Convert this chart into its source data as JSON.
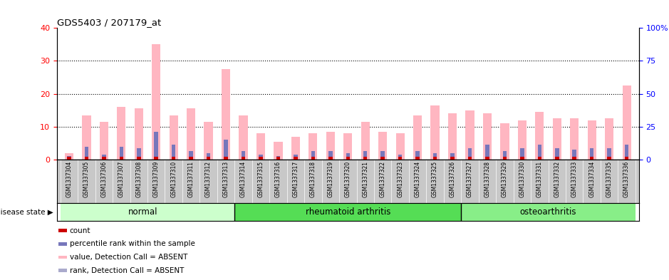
{
  "title": "GDS5403 / 207179_at",
  "samples": [
    "GSM1337304",
    "GSM1337305",
    "GSM1337306",
    "GSM1337307",
    "GSM1337308",
    "GSM1337309",
    "GSM1337310",
    "GSM1337311",
    "GSM1337312",
    "GSM1337313",
    "GSM1337314",
    "GSM1337315",
    "GSM1337316",
    "GSM1337317",
    "GSM1337318",
    "GSM1337319",
    "GSM1337320",
    "GSM1337321",
    "GSM1337322",
    "GSM1337323",
    "GSM1337324",
    "GSM1337325",
    "GSM1337326",
    "GSM1337327",
    "GSM1337328",
    "GSM1337329",
    "GSM1337330",
    "GSM1337331",
    "GSM1337332",
    "GSM1337333",
    "GSM1337334",
    "GSM1337335",
    "GSM1337336"
  ],
  "pink_values": [
    2.0,
    13.5,
    11.5,
    16.0,
    15.5,
    35.0,
    13.5,
    15.5,
    11.5,
    27.5,
    13.5,
    8.0,
    5.5,
    7.0,
    8.0,
    8.5,
    8.0,
    11.5,
    8.5,
    8.0,
    13.5,
    16.5,
    14.0,
    15.0,
    14.0,
    11.0,
    12.0,
    14.5,
    12.5,
    12.5,
    12.0,
    12.5,
    22.5
  ],
  "blue_values": [
    1.0,
    4.0,
    1.5,
    4.0,
    3.5,
    8.5,
    4.5,
    2.5,
    2.0,
    6.0,
    2.5,
    1.5,
    1.0,
    1.5,
    2.5,
    2.5,
    2.0,
    2.5,
    2.5,
    1.5,
    2.5,
    2.0,
    2.0,
    3.5,
    4.5,
    2.5,
    3.5,
    4.5,
    3.5,
    3.0,
    3.5,
    3.5,
    4.5
  ],
  "red_values": [
    0.8,
    0.8,
    0.8,
    0.8,
    0.8,
    0.8,
    0.8,
    0.8,
    0.8,
    0.8,
    0.8,
    0.8,
    0.8,
    0.8,
    0.8,
    0.8,
    0.8,
    0.8,
    0.8,
    0.8,
    0.8,
    0.8,
    0.8,
    0.8,
    0.8,
    0.8,
    0.8,
    0.8,
    0.8,
    0.8,
    0.8,
    0.8,
    0.8
  ],
  "group_dividers": [
    9.5,
    22.5
  ],
  "group_colors": [
    "#CCFFCC",
    "#66DD66",
    "#99EE99"
  ],
  "ylim_left": [
    0,
    40
  ],
  "ylim_right": [
    0,
    100
  ],
  "yticks_left": [
    0,
    10,
    20,
    30,
    40
  ],
  "yticks_right": [
    0,
    25,
    50,
    75,
    100
  ],
  "ytick_labels_right": [
    "0",
    "25",
    "50",
    "75",
    "100%"
  ],
  "bar_width": 0.5,
  "pink_color": "#FFB6C1",
  "blue_color": "#7777BB",
  "red_color": "#CC0000",
  "xlabel_area_color": "#C8C8C8",
  "group_area_color_normal": "#CCFFCC",
  "group_area_color_ra": "#55DD55",
  "group_area_color_oa": "#88EE88"
}
